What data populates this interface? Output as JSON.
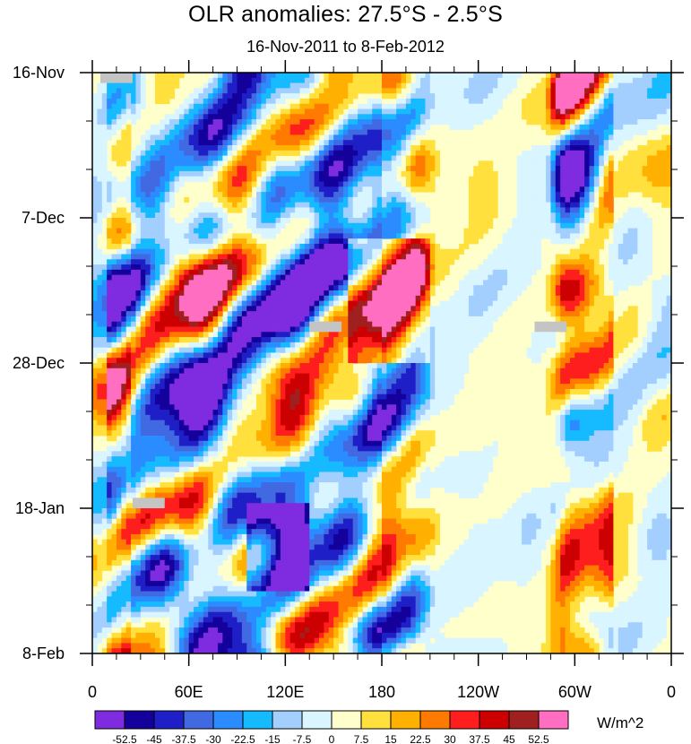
{
  "chart_data": {
    "type": "heatmap",
    "title": "OLR anomalies: 27.5°S - 2.5°S",
    "subtitle": "16-Nov-2011 to 8-Feb-2012",
    "units": "W/m^2",
    "x_axis": {
      "range": [
        0,
        360
      ],
      "major_ticks": [
        {
          "value": 0,
          "label": "0"
        },
        {
          "value": 60,
          "label": "60E"
        },
        {
          "value": 120,
          "label": "120E"
        },
        {
          "value": 180,
          "label": "180"
        },
        {
          "value": 240,
          "label": "120W"
        },
        {
          "value": 300,
          "label": "60W"
        },
        {
          "value": 360,
          "label": "0"
        }
      ],
      "minor_step": 15
    },
    "y_axis": {
      "range_days": [
        0,
        84
      ],
      "direction": "time increasing downward",
      "major_ticks": [
        {
          "value": 0,
          "label": "16-Nov"
        },
        {
          "value": 21,
          "label": "7-Dec"
        },
        {
          "value": 42,
          "label": "28-Dec"
        },
        {
          "value": 63,
          "label": "18-Jan"
        },
        {
          "value": 84,
          "label": "8-Feb"
        }
      ],
      "minor_step": 7
    },
    "colorbar": {
      "labels": [
        "-52.5",
        "-45",
        "-37.5",
        "-30",
        "-22.5",
        "-15",
        "-7.5",
        "0",
        "7.5",
        "15",
        "22.5",
        "30",
        "37.5",
        "45",
        "52.5"
      ],
      "colors": [
        "#7f2be0",
        "#14009a",
        "#1f1fc8",
        "#4169e1",
        "#2a8cff",
        "#16bbff",
        "#a3cfff",
        "#d9f5ff",
        "#ffffcc",
        "#ffe03c",
        "#ffb000",
        "#ff7a00",
        "#ff1e1e",
        "#cc0000",
        "#a02020",
        "#ff6ec0"
      ]
    },
    "missing_data": [
      {
        "lon": [
          5,
          25
        ],
        "day": [
          0,
          1.5
        ]
      },
      {
        "lon": [
          135,
          155
        ],
        "day": [
          36,
          37.5
        ]
      },
      {
        "lon": [
          275,
          295
        ],
        "day": [
          36,
          37.5
        ]
      },
      {
        "lon": [
          25,
          45
        ],
        "day": [
          61.5,
          63
        ]
      }
    ],
    "features": [
      {
        "note": "negative (blue) anomalies concentrated 20E-180 with eastward-tilted bands",
        "lon": [
          20,
          180
        ],
        "sign": "negative"
      },
      {
        "note": "strong negative anomaly core near 100E-130E in mid-January",
        "lon": [
          95,
          135
        ],
        "day": [
          64,
          74
        ],
        "sign": "negative"
      },
      {
        "note": "positive (orange/red) anomalies near 160E-210E in early-mid December",
        "lon": [
          160,
          210
        ],
        "day": [
          25,
          40
        ],
        "sign": "positive"
      },
      {
        "note": "weak anomalies (near zero) across 210E-285E",
        "lon": [
          210,
          285
        ],
        "sign": "neutral"
      },
      {
        "note": "alternating positive/negative bands near 290E-320E",
        "lon": [
          290,
          320
        ],
        "sign": "mixed"
      }
    ]
  }
}
